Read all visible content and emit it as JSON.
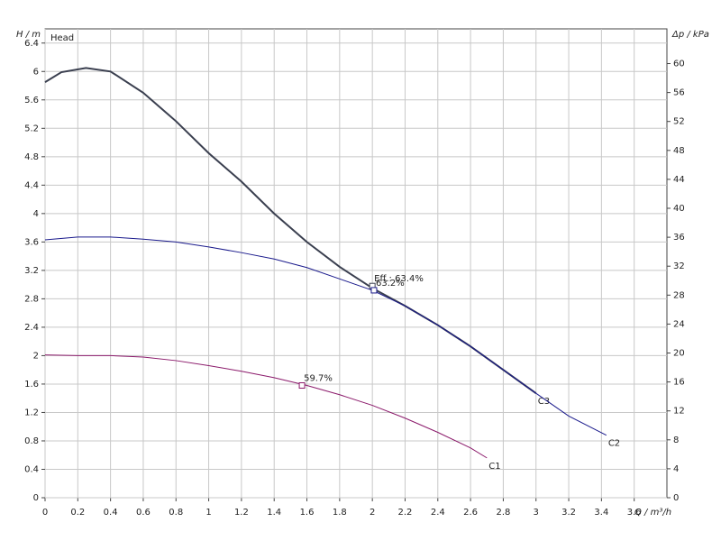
{
  "chart_data": {
    "type": "line",
    "y_label": "H / m",
    "y2_label": "Δp / kPa",
    "x_label": "Q / m³/h",
    "legend_text": "Head",
    "xlim": [
      0,
      3.8
    ],
    "xticks": [
      0,
      0.2,
      0.4,
      0.6,
      0.8,
      1,
      1.2,
      1.4,
      1.6,
      1.8,
      2,
      2.2,
      2.4,
      2.6,
      2.8,
      3,
      3.2,
      3.4,
      3.6
    ],
    "ylim": [
      0,
      6.6
    ],
    "yticks": [
      0,
      0.4,
      0.8,
      1.2,
      1.6,
      2,
      2.4,
      2.8,
      3.2,
      3.6,
      4,
      4.4,
      4.8,
      5.2,
      5.6,
      6,
      6.4
    ],
    "y2lim": [
      0,
      64.8
    ],
    "y2ticks": [
      0,
      4,
      8,
      12,
      16,
      20,
      24,
      28,
      32,
      36,
      40,
      44,
      48,
      52,
      56,
      60
    ],
    "grid": true,
    "series": [
      {
        "name": "C3",
        "color": "#3a3f4f",
        "width": 2,
        "x": [
          0,
          0.1,
          0.25,
          0.4,
          0.6,
          0.8,
          1.0,
          1.2,
          1.4,
          1.6,
          1.8,
          2.0,
          2.2,
          2.4,
          2.6,
          2.8,
          3.0
        ],
        "values": [
          5.85,
          5.99,
          6.05,
          6.0,
          5.7,
          5.3,
          4.85,
          4.45,
          4.0,
          3.6,
          3.25,
          2.95,
          2.7,
          2.43,
          2.13,
          1.8,
          1.47
        ],
        "marker": {
          "x": 2.0,
          "y": 2.98,
          "value": 63.4,
          "value_label": "Eff.: 63.4%"
        }
      },
      {
        "name": "C2",
        "color": "#1a1a8c",
        "width": 1,
        "x": [
          0,
          0.2,
          0.4,
          0.6,
          0.8,
          1.0,
          1.2,
          1.4,
          1.6,
          1.8,
          2.0,
          2.2,
          2.4,
          2.6,
          2.8,
          3.0,
          3.2,
          3.43
        ],
        "values": [
          3.63,
          3.67,
          3.67,
          3.64,
          3.6,
          3.53,
          3.45,
          3.36,
          3.24,
          3.08,
          2.92,
          2.7,
          2.43,
          2.13,
          1.8,
          1.47,
          1.15,
          0.88
        ],
        "marker": {
          "x": 2.01,
          "y": 2.92,
          "value": 63.2,
          "value_label": "63.2%"
        }
      },
      {
        "name": "C1",
        "color": "#8b1a6b",
        "width": 1,
        "x": [
          0,
          0.2,
          0.4,
          0.6,
          0.8,
          1.0,
          1.2,
          1.4,
          1.6,
          1.8,
          2.0,
          2.2,
          2.4,
          2.6,
          2.7
        ],
        "values": [
          2.01,
          2.0,
          2.0,
          1.98,
          1.93,
          1.86,
          1.78,
          1.69,
          1.58,
          1.45,
          1.3,
          1.12,
          0.92,
          0.7,
          0.56
        ],
        "marker": {
          "x": 1.57,
          "y": 1.58,
          "value": 59.7,
          "value_label": "59.7%"
        }
      }
    ]
  }
}
